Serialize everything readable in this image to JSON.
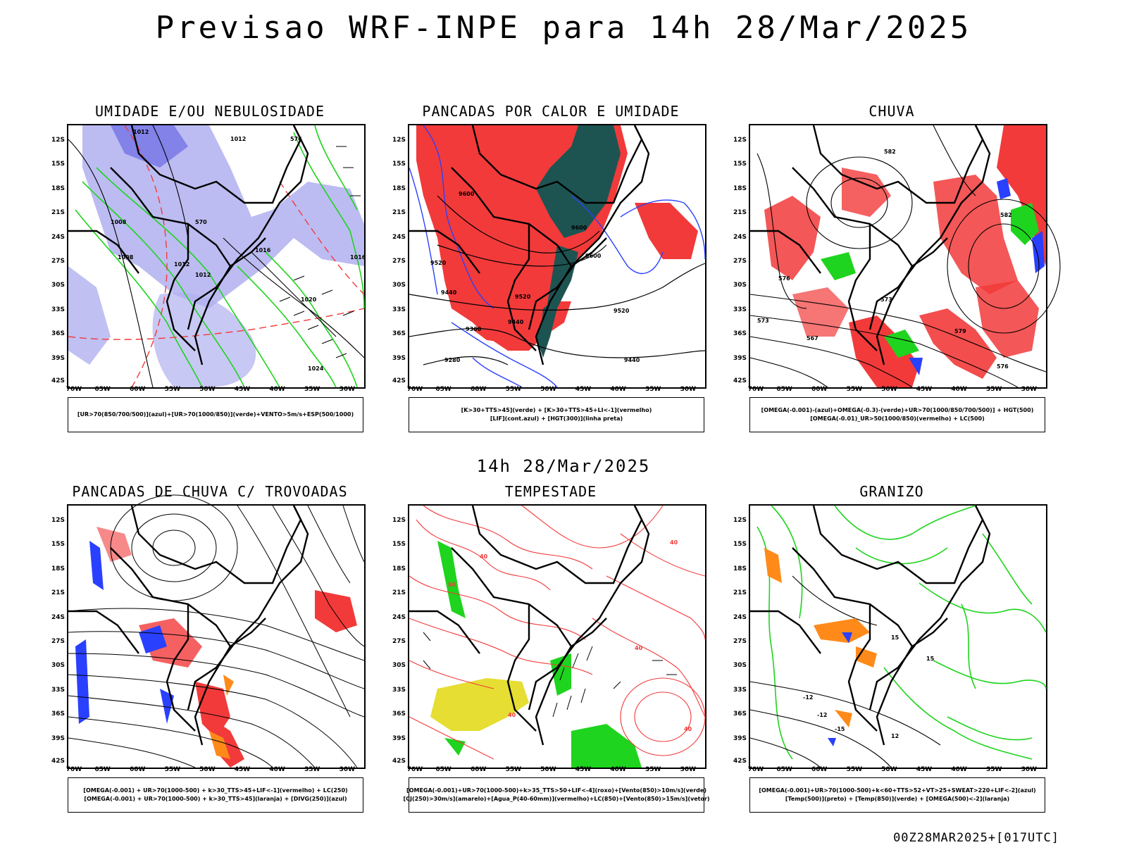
{
  "title": "Previsao WRF-INPE  para 14h 28/Mar/2025",
  "mid_title": "14h 28/Mar/2025",
  "footer": "00Z28MAR2025+[017UTC]",
  "axes": {
    "lat": [
      "12S",
      "15S",
      "18S",
      "21S",
      "24S",
      "27S",
      "30S",
      "33S",
      "36S",
      "39S",
      "42S"
    ],
    "lon": [
      "70W",
      "65W",
      "60W",
      "55W",
      "50W",
      "45W",
      "40W",
      "35W",
      "30W"
    ]
  },
  "colors": {
    "blue": "#2a40ff",
    "lavender": "#b0b0f0",
    "green": "#1ed41e",
    "red": "#f23a3a",
    "darkteal": "#1d5452",
    "yellow": "#e6de32",
    "orange": "#ff8a1a",
    "purple": "#b000c8"
  },
  "panels": [
    {
      "title": "UMIDADE E/OU NEBULOSIDADE",
      "legend": [
        "[UR>70(850/700/500)](azul)+[UR>70(1000/850)](verde)+VENTO>5m/s+ESP(500/1000)"
      ],
      "labels": [
        "1012",
        "1012",
        "1008",
        "1008",
        "1012",
        "1016",
        "1012",
        "1020",
        "1024",
        "1016",
        "576",
        "570"
      ]
    },
    {
      "title": "PANCADAS POR CALOR E UMIDADE",
      "legend": [
        "[K>30+TTS>45](verde) + [K>30+TTS>45+LI<-1](vermelho)",
        "[LIF](cont.azul) + [HGT(300)](linha preta)"
      ],
      "labels": [
        "9600",
        "9520",
        "9440",
        "9360",
        "9280",
        "9520",
        "9440",
        "9600",
        "9600",
        "9520",
        "9440"
      ]
    },
    {
      "title": "CHUVA",
      "legend": [
        "[OMEGA(-0.001)-(azul)+OMEGA(-0.3)-(verde)+UR>70(1000/850/700/500)] + HGT(500)",
        "[OMEGA(-0.01)_UR>50(1000/850)(vermelho) + LC(500)"
      ],
      "labels": [
        "582",
        "582",
        "579",
        "576",
        "573",
        "567",
        "576",
        "573"
      ]
    },
    {
      "title": "PANCADAS DE CHUVA C/ TROVOADAS",
      "legend": [
        "[OMEGA(-0.001) + UR>70(1000-500) + k>30_TTS>45+LIF<-1](vermelho) + LC(250)",
        "[OMEGA(-0.001) + UR>70(1000-500) + k>30_TTS>45](laranja) + [DIVG(250)](azul)"
      ],
      "labels": []
    },
    {
      "title": "TEMPESTADE",
      "legend": [
        "[OMEGA(-0.001)+UR>70(1000-500)+k>35_TTS>50+LIF<-4](roxo)+[Vento(850)>10m/s](verde)",
        "[CJ(250)>30m/s](amarelo)+[Agua_P(40-60mm)](vermelho)+LC(850)+[Vento(850)>15m/s](vetor)"
      ],
      "labels": [
        "40",
        "40",
        "50",
        "40",
        "40",
        "40"
      ]
    },
    {
      "title": "GRANIZO",
      "legend": [
        "[OMEGA(-0.001)+UR>70(1000-500)+k<60+TTS>52+VT>25+SWEAT>220+LIF<-2](azul)",
        "[Temp(500)](preto) + [Temp(850)](verde) + [OMEGA(500)<-2](laranja)"
      ],
      "labels": [
        "-12",
        "-15",
        "-12",
        "15",
        "15",
        "12"
      ]
    }
  ]
}
